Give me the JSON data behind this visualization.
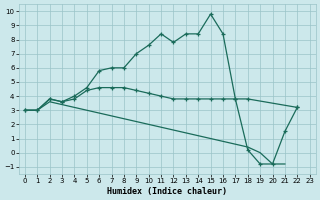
{
  "xlabel": "Humidex (Indice chaleur)",
  "background_color": "#cce8eb",
  "grid_color": "#9ac4c8",
  "line_color": "#1a6b5a",
  "xlim": [
    -0.5,
    23.5
  ],
  "ylim": [
    -1.5,
    10.5
  ],
  "xticks": [
    0,
    1,
    2,
    3,
    4,
    5,
    6,
    7,
    8,
    9,
    10,
    11,
    12,
    13,
    14,
    15,
    16,
    17,
    18,
    19,
    20,
    21,
    22,
    23
  ],
  "yticks": [
    -1,
    0,
    1,
    2,
    3,
    4,
    5,
    6,
    7,
    8,
    9,
    10
  ],
  "s1x": [
    0,
    1,
    2,
    3,
    4,
    5,
    6,
    7,
    8,
    9,
    10,
    11,
    12,
    13,
    14,
    15,
    16,
    17,
    18,
    19,
    20,
    21,
    22
  ],
  "s1y": [
    3.0,
    3.0,
    3.8,
    3.6,
    4.0,
    4.6,
    5.8,
    6.0,
    6.0,
    7.0,
    7.6,
    8.4,
    7.8,
    8.4,
    8.4,
    9.8,
    8.4,
    3.8,
    0.2,
    -0.8,
    -0.8,
    1.5,
    3.2
  ],
  "s2x": [
    0,
    1,
    2,
    3,
    4,
    5,
    6,
    7,
    8,
    9,
    10,
    11,
    12,
    13,
    14,
    15,
    16,
    17,
    18,
    22
  ],
  "s2y": [
    3.0,
    3.0,
    3.8,
    3.6,
    3.8,
    4.4,
    4.6,
    4.6,
    4.6,
    4.4,
    4.2,
    4.0,
    3.8,
    3.8,
    3.8,
    3.8,
    3.8,
    3.8,
    3.8,
    3.2
  ],
  "s3x": [
    0,
    1,
    2,
    3,
    4,
    5,
    6,
    7,
    8,
    9,
    10,
    11,
    12,
    13,
    14,
    15,
    16,
    17,
    18,
    19,
    20,
    21
  ],
  "s3y": [
    3.0,
    3.0,
    3.6,
    3.4,
    3.2,
    3.0,
    2.8,
    2.6,
    2.4,
    2.2,
    2.0,
    1.8,
    1.6,
    1.4,
    1.2,
    1.0,
    0.8,
    0.6,
    0.4,
    0.0,
    -0.8,
    -0.8
  ]
}
